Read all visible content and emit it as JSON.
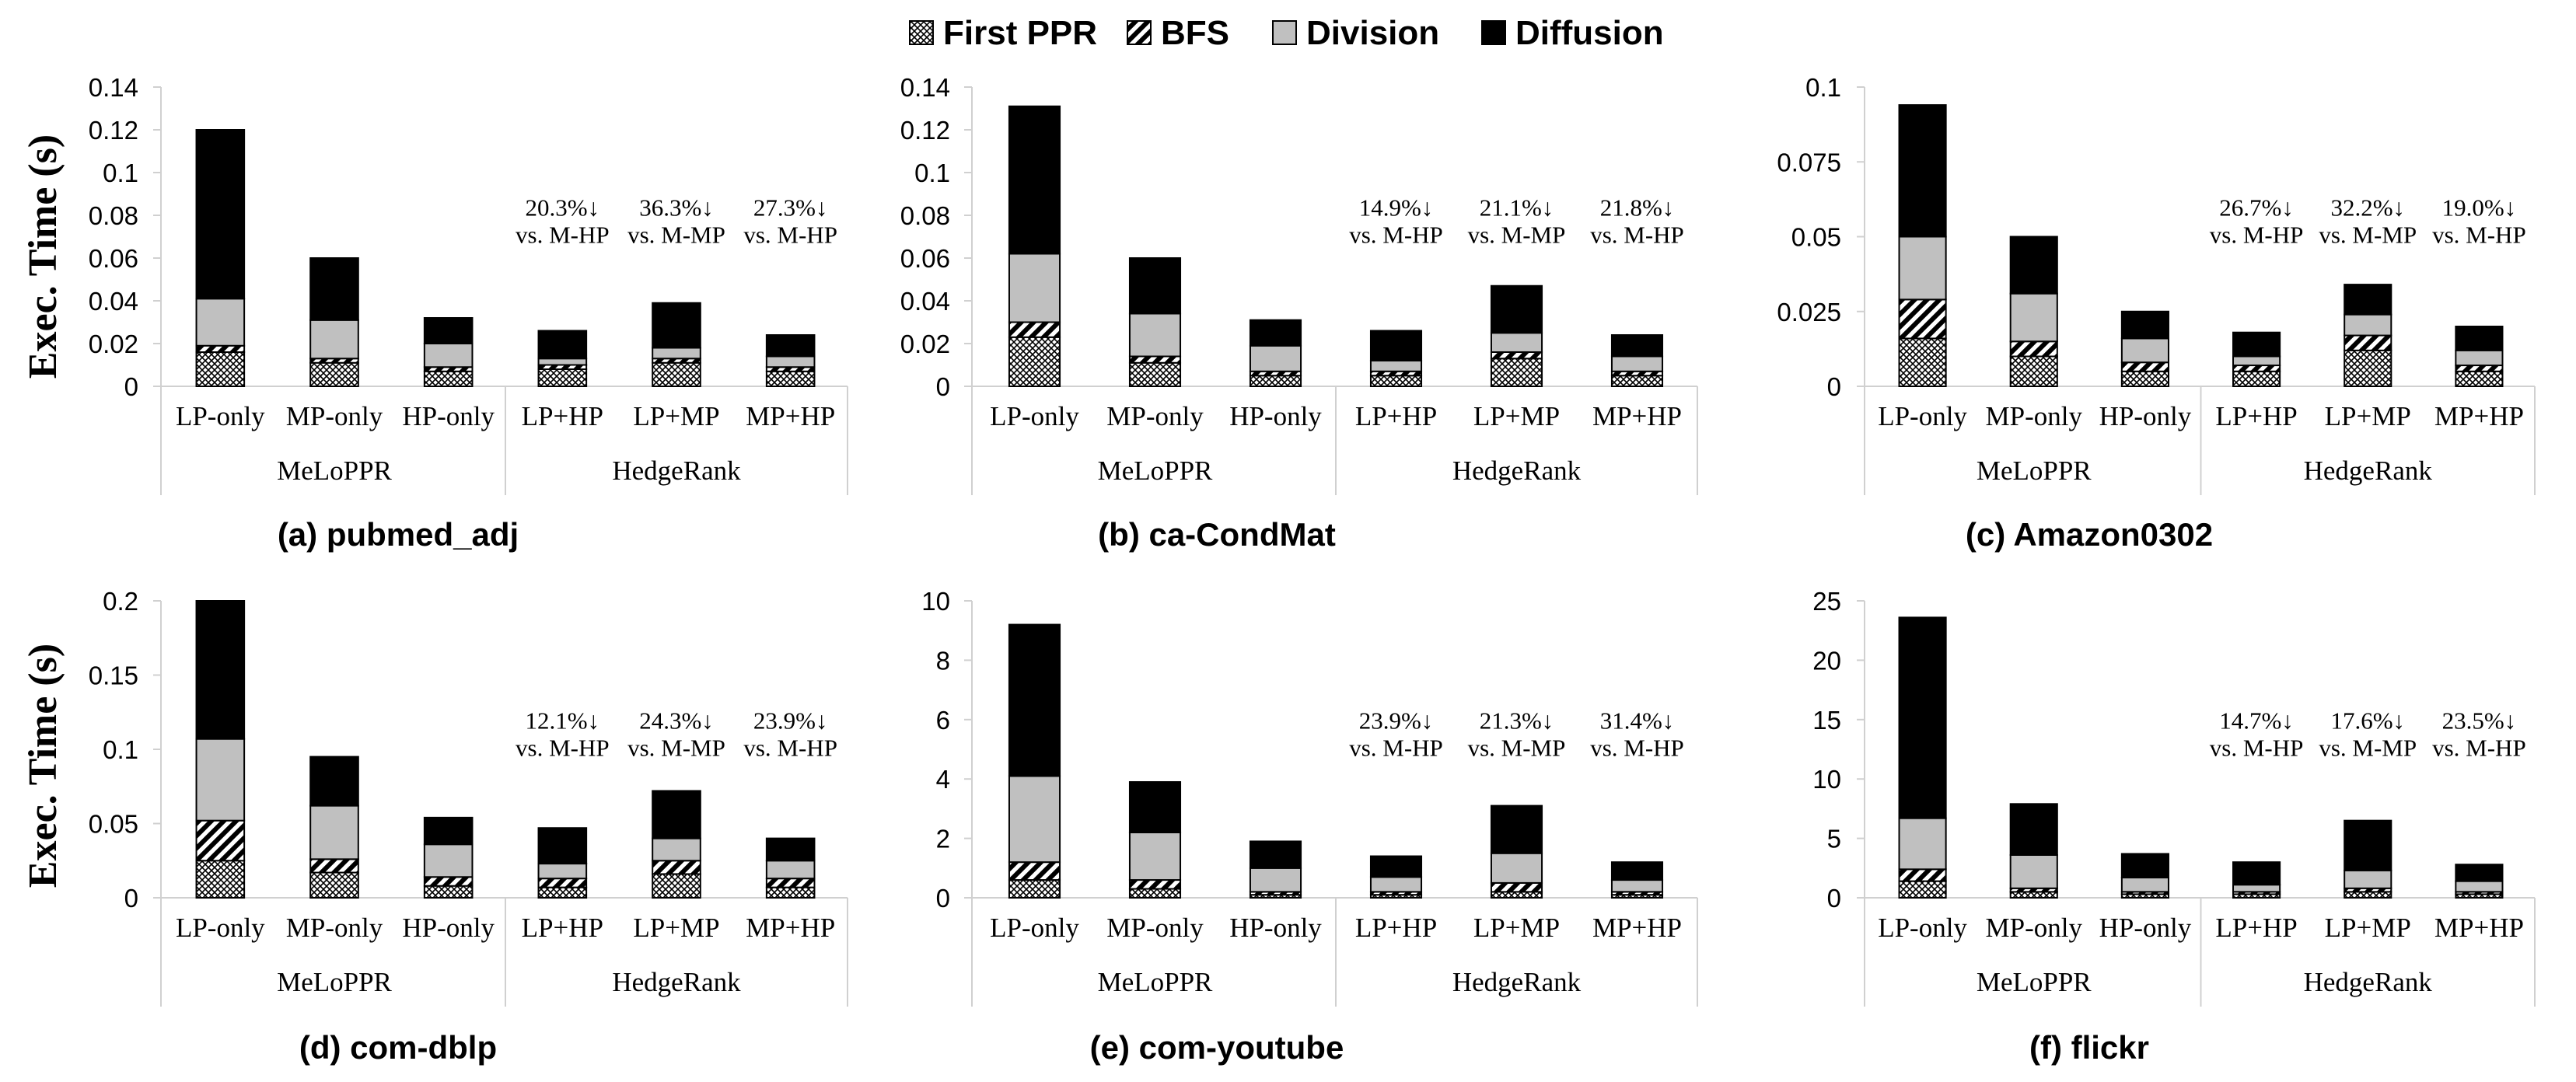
{
  "legend": {
    "items": [
      {
        "name": "First PPR",
        "pattern": "crosshatch"
      },
      {
        "name": "BFS",
        "pattern": "diagonal"
      },
      {
        "name": "Division",
        "color": "#c0c0c0"
      },
      {
        "name": "Diffusion",
        "color": "#000000"
      }
    ]
  },
  "colors": {
    "division": "#c0c0c0",
    "diffusion": "#000000",
    "axis": "#d0d0d0"
  },
  "ylabel": "Exec. Time (s)",
  "chart_data": [
    {
      "type": "bar",
      "stacked": true,
      "title": "(a) pubmed_adj",
      "ylabel": "Exec. Time (s)",
      "ylim": [
        0,
        0.14
      ],
      "yticks": [
        "0",
        "0.02",
        "0.04",
        "0.06",
        "0.08",
        "0.1",
        "0.12",
        "0.14"
      ],
      "ytick_values": [
        0,
        0.02,
        0.04,
        0.06,
        0.08,
        0.1,
        0.12,
        0.14
      ],
      "categories": [
        "LP-only",
        "MP-only",
        "HP-only",
        "LP+HP",
        "LP+MP",
        "MP+HP"
      ],
      "groups": [
        {
          "name": "MeLoPPR",
          "count": 3
        },
        {
          "name": "HedgeRank",
          "count": 3
        }
      ],
      "series": [
        {
          "name": "First PPR",
          "values": [
            0.016,
            0.011,
            0.007,
            0.008,
            0.011,
            0.007
          ]
        },
        {
          "name": "BFS",
          "values": [
            0.003,
            0.002,
            0.002,
            0.002,
            0.002,
            0.002
          ]
        },
        {
          "name": "Division",
          "values": [
            0.022,
            0.018,
            0.011,
            0.003,
            0.005,
            0.005
          ]
        },
        {
          "name": "Diffusion",
          "values": [
            0.079,
            0.029,
            0.012,
            0.013,
            0.021,
            0.01
          ]
        }
      ],
      "annotations": [
        {
          "category": "LP+HP",
          "line1": "20.3%↓",
          "line2": "vs. M-HP"
        },
        {
          "category": "LP+MP",
          "line1": "36.3%↓",
          "line2": "vs. M-MP"
        },
        {
          "category": "MP+HP",
          "line1": "27.3%↓",
          "line2": "vs. M-HP"
        }
      ]
    },
    {
      "type": "bar",
      "stacked": true,
      "title": "(b) ca-CondMat",
      "ylim": [
        0,
        0.14
      ],
      "yticks": [
        "0",
        "0.02",
        "0.04",
        "0.06",
        "0.08",
        "0.1",
        "0.12",
        "0.14"
      ],
      "ytick_values": [
        0,
        0.02,
        0.04,
        0.06,
        0.08,
        0.1,
        0.12,
        0.14
      ],
      "categories": [
        "LP-only",
        "MP-only",
        "HP-only",
        "LP+HP",
        "LP+MP",
        "MP+HP"
      ],
      "groups": [
        {
          "name": "MeLoPPR",
          "count": 3
        },
        {
          "name": "HedgeRank",
          "count": 3
        }
      ],
      "series": [
        {
          "name": "First PPR",
          "values": [
            0.023,
            0.011,
            0.005,
            0.005,
            0.013,
            0.005
          ]
        },
        {
          "name": "BFS",
          "values": [
            0.007,
            0.003,
            0.002,
            0.002,
            0.003,
            0.002
          ]
        },
        {
          "name": "Division",
          "values": [
            0.032,
            0.02,
            0.012,
            0.005,
            0.009,
            0.007
          ]
        },
        {
          "name": "Diffusion",
          "values": [
            0.069,
            0.026,
            0.012,
            0.014,
            0.022,
            0.01
          ]
        }
      ],
      "annotations": [
        {
          "category": "LP+HP",
          "line1": "14.9%↓",
          "line2": "vs. M-HP"
        },
        {
          "category": "LP+MP",
          "line1": "21.1%↓",
          "line2": "vs. M-MP"
        },
        {
          "category": "MP+HP",
          "line1": "21.8%↓",
          "line2": "vs. M-HP"
        }
      ]
    },
    {
      "type": "bar",
      "stacked": true,
      "title": "(c) Amazon0302",
      "ylim": [
        0,
        0.1
      ],
      "yticks": [
        "0",
        "0.025",
        "0.05",
        "0.075",
        "0.1"
      ],
      "ytick_values": [
        0,
        0.025,
        0.05,
        0.075,
        0.1
      ],
      "categories": [
        "LP-only",
        "MP-only",
        "HP-only",
        "LP+HP",
        "LP+MP",
        "MP+HP"
      ],
      "groups": [
        {
          "name": "MeLoPPR",
          "count": 3
        },
        {
          "name": "HedgeRank",
          "count": 3
        }
      ],
      "series": [
        {
          "name": "First PPR",
          "values": [
            0.016,
            0.01,
            0.005,
            0.005,
            0.012,
            0.005
          ]
        },
        {
          "name": "BFS",
          "values": [
            0.013,
            0.005,
            0.003,
            0.002,
            0.005,
            0.002
          ]
        },
        {
          "name": "Division",
          "values": [
            0.021,
            0.016,
            0.008,
            0.003,
            0.007,
            0.005
          ]
        },
        {
          "name": "Diffusion",
          "values": [
            0.044,
            0.019,
            0.009,
            0.008,
            0.01,
            0.008
          ]
        }
      ],
      "annotations": [
        {
          "category": "LP+HP",
          "line1": "26.7%↓",
          "line2": "vs. M-HP"
        },
        {
          "category": "LP+MP",
          "line1": "32.2%↓",
          "line2": "vs. M-MP"
        },
        {
          "category": "MP+HP",
          "line1": "19.0%↓",
          "line2": "vs. M-HP"
        }
      ]
    },
    {
      "type": "bar",
      "stacked": true,
      "title": "(d) com-dblp",
      "ylabel": "Exec. Time (s)",
      "ylim": [
        0,
        0.2
      ],
      "yticks": [
        "0",
        "0.05",
        "0.1",
        "0.15",
        "0.2"
      ],
      "ytick_values": [
        0,
        0.05,
        0.1,
        0.15,
        0.2
      ],
      "categories": [
        "LP-only",
        "MP-only",
        "HP-only",
        "LP+HP",
        "LP+MP",
        "MP+HP"
      ],
      "groups": [
        {
          "name": "MeLoPPR",
          "count": 3
        },
        {
          "name": "HedgeRank",
          "count": 3
        }
      ],
      "series": [
        {
          "name": "First PPR",
          "values": [
            0.025,
            0.017,
            0.008,
            0.007,
            0.016,
            0.007
          ]
        },
        {
          "name": "BFS",
          "values": [
            0.027,
            0.009,
            0.006,
            0.006,
            0.009,
            0.006
          ]
        },
        {
          "name": "Division",
          "values": [
            0.055,
            0.036,
            0.022,
            0.01,
            0.015,
            0.012
          ]
        },
        {
          "name": "Diffusion",
          "values": [
            0.093,
            0.033,
            0.018,
            0.024,
            0.032,
            0.015
          ]
        }
      ],
      "annotations": [
        {
          "category": "LP+HP",
          "line1": "12.1%↓",
          "line2": "vs. M-HP"
        },
        {
          "category": "LP+MP",
          "line1": "24.3%↓",
          "line2": "vs. M-MP"
        },
        {
          "category": "MP+HP",
          "line1": "23.9%↓",
          "line2": "vs. M-HP"
        }
      ]
    },
    {
      "type": "bar",
      "stacked": true,
      "title": "(e) com-youtube",
      "ylim": [
        0,
        10
      ],
      "yticks": [
        "0",
        "2",
        "4",
        "6",
        "8",
        "10"
      ],
      "ytick_values": [
        0,
        2,
        4,
        6,
        8,
        10
      ],
      "categories": [
        "LP-only",
        "MP-only",
        "HP-only",
        "LP+HP",
        "LP+MP",
        "MP+HP"
      ],
      "groups": [
        {
          "name": "MeLoPPR",
          "count": 3
        },
        {
          "name": "HedgeRank",
          "count": 3
        }
      ],
      "series": [
        {
          "name": "First PPR",
          "values": [
            0.6,
            0.3,
            0.1,
            0.1,
            0.2,
            0.1
          ]
        },
        {
          "name": "BFS",
          "values": [
            0.6,
            0.3,
            0.1,
            0.1,
            0.3,
            0.1
          ]
        },
        {
          "name": "Division",
          "values": [
            2.9,
            1.6,
            0.8,
            0.5,
            1.0,
            0.4
          ]
        },
        {
          "name": "Diffusion",
          "values": [
            5.1,
            1.7,
            0.9,
            0.7,
            1.6,
            0.6
          ]
        }
      ],
      "annotations": [
        {
          "category": "LP+HP",
          "line1": "23.9%↓",
          "line2": "vs. M-HP"
        },
        {
          "category": "LP+MP",
          "line1": "21.3%↓",
          "line2": "vs. M-MP"
        },
        {
          "category": "MP+HP",
          "line1": "31.4%↓",
          "line2": "vs. M-HP"
        }
      ]
    },
    {
      "type": "bar",
      "stacked": true,
      "title": "(f) flickr",
      "ylim": [
        0,
        25
      ],
      "yticks": [
        "0",
        "5",
        "10",
        "15",
        "20",
        "25"
      ],
      "ytick_values": [
        0,
        5,
        10,
        15,
        20,
        25
      ],
      "categories": [
        "LP-only",
        "MP-only",
        "HP-only",
        "LP+HP",
        "LP+MP",
        "MP+HP"
      ],
      "groups": [
        {
          "name": "MeLoPPR",
          "count": 3
        },
        {
          "name": "HedgeRank",
          "count": 3
        }
      ],
      "series": [
        {
          "name": "First PPR",
          "values": [
            1.4,
            0.5,
            0.3,
            0.3,
            0.5,
            0.3
          ]
        },
        {
          "name": "BFS",
          "values": [
            1.0,
            0.3,
            0.2,
            0.2,
            0.3,
            0.2
          ]
        },
        {
          "name": "Division",
          "values": [
            4.3,
            2.8,
            1.2,
            0.6,
            1.5,
            0.9
          ]
        },
        {
          "name": "Diffusion",
          "values": [
            16.9,
            4.3,
            2.0,
            1.9,
            4.2,
            1.4
          ]
        }
      ],
      "annotations": [
        {
          "category": "LP+HP",
          "line1": "14.7%↓",
          "line2": "vs. M-HP"
        },
        {
          "category": "LP+MP",
          "line1": "17.6%↓",
          "line2": "vs. M-MP"
        },
        {
          "category": "MP+HP",
          "line1": "23.5%↓",
          "line2": "vs. M-HP"
        }
      ]
    }
  ]
}
